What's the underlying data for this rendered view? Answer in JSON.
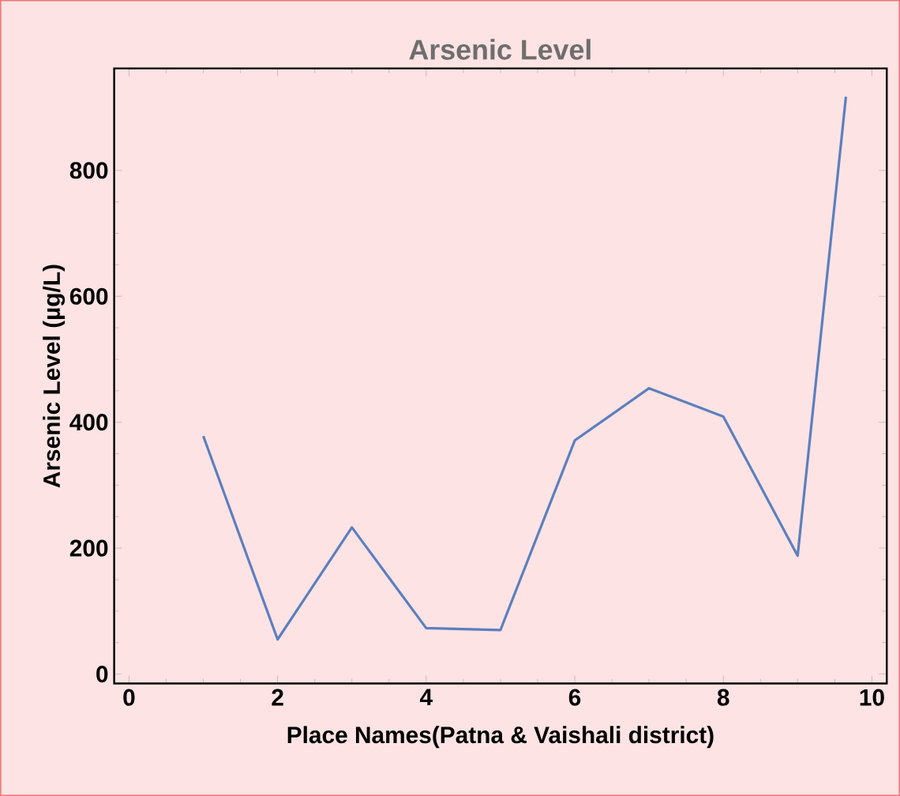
{
  "chart_data": {
    "type": "line",
    "title": "Arsenic Level",
    "xlabel": "Place Names(Patna & Vaishali district)",
    "ylabel": "Arsenic Level  (µg/L)",
    "x": [
      1,
      2,
      3,
      4,
      5,
      6,
      7,
      8,
      9,
      9.65
    ],
    "series": [
      {
        "color": "#5b7fbf",
        "values": [
          378,
          55,
          233,
          73,
          70,
          371,
          454,
          409,
          188,
          917
        ]
      }
    ],
    "xlim": [
      -0.2,
      10.2
    ],
    "ylim": [
      -15,
      962
    ],
    "xticks": [
      0,
      2,
      4,
      6,
      8,
      10
    ],
    "yticks": [
      0,
      200,
      400,
      600,
      800
    ],
    "grid": false,
    "marker": "none",
    "line_style": "solid"
  }
}
